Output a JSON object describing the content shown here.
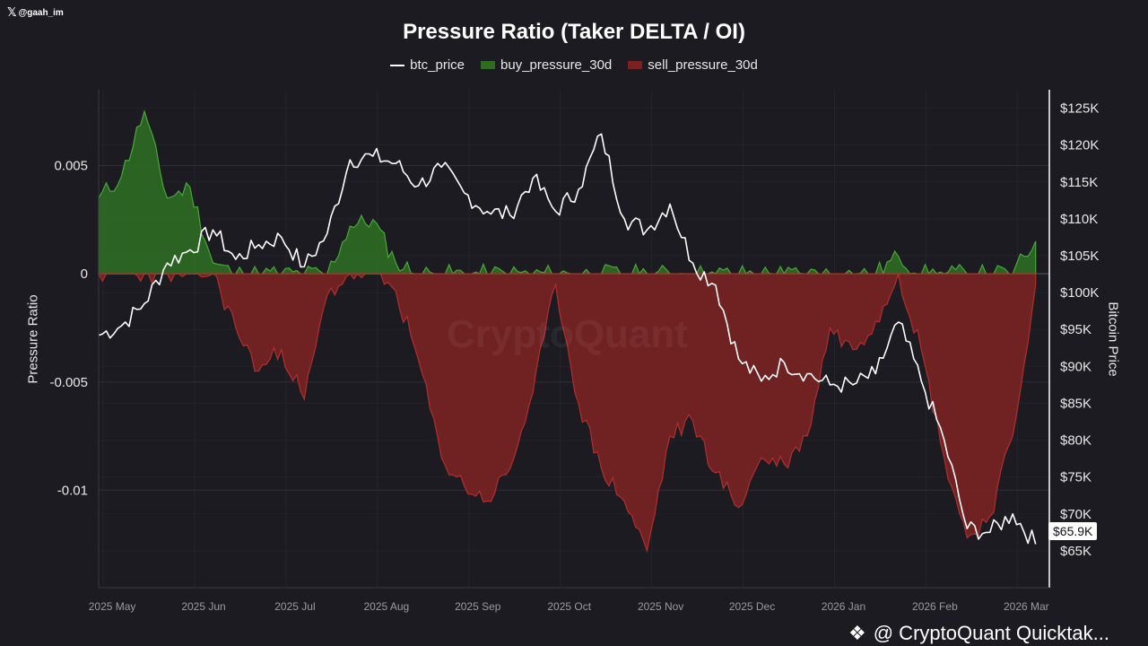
{
  "header": {
    "handle": "@gaah_im",
    "handle_icon": "x-logo-icon"
  },
  "footer": {
    "brand_text": "@ CryptoQuant Quicktak...",
    "brand_icon": "diamond-logo-icon"
  },
  "watermark": "CryptoQuant",
  "colors": {
    "background": "#1b1b21",
    "btc_line": "#ffffff",
    "buy_fill": "#2e6b22",
    "buy_line": "#49a83a",
    "sell_fill": "#7a2222",
    "sell_line": "#b03030",
    "grid": "#2e2e36"
  },
  "chart_data": {
    "type": "area",
    "title": "Pressure Ratio (Taker DELTA / OI)",
    "xlabel": "",
    "ylabel_left": "Pressure Ratio",
    "ylabel_right": "Bitcoin Price",
    "legend_position": "top-center",
    "grid": true,
    "x_ticks": [
      "2025 May",
      "2025 Jun",
      "2025 Jul",
      "2025 Aug",
      "2025 Sep",
      "2025 Oct",
      "2025 Nov",
      "2025 Dec",
      "2026 Jan",
      "2026 Feb",
      "2026 Mar"
    ],
    "ylim_left": [
      -0.0145,
      0.0085
    ],
    "yticks_left": [
      0.005,
      0,
      -0.005,
      -0.01
    ],
    "ytick_labels_left": [
      "0.005",
      "0",
      "-0.005",
      "-0.01"
    ],
    "ylim_right": [
      60000,
      127500
    ],
    "yticks_right": [
      125000,
      120000,
      115000,
      110000,
      105000,
      100000,
      95000,
      90000,
      85000,
      80000,
      75000,
      70000,
      65000
    ],
    "ytick_labels_right": [
      "$125K",
      "$120K",
      "$115K",
      "$110K",
      "$105K",
      "$100K",
      "$95K",
      "$90K",
      "$85K",
      "$80K",
      "$75K",
      "$70K",
      "$65K"
    ],
    "last_price_label": "$65.9K",
    "x_months": [
      0,
      0.25,
      0.5,
      0.75,
      1.0,
      1.25,
      1.5,
      1.75,
      2.0,
      2.25,
      2.5,
      2.75,
      3.0,
      3.25,
      3.5,
      3.75,
      4.0,
      4.25,
      4.5,
      4.75,
      5.0,
      5.25,
      5.5,
      5.75,
      6.0,
      6.25,
      6.5,
      6.75,
      7.0,
      7.25,
      7.5,
      7.75,
      8.0,
      8.25,
      8.5,
      8.75,
      9.0,
      9.25,
      9.5,
      9.75,
      10.0,
      10.25
    ],
    "series": [
      {
        "name": "btc_price",
        "axis": "right",
        "values": [
          94200,
          95500,
          98500,
          104000,
          105800,
          108500,
          104500,
          106500,
          107500,
          103500,
          108000,
          118000,
          118500,
          117500,
          114500,
          117000,
          113500,
          111000,
          110500,
          115500,
          111000,
          114000,
          121500,
          110000,
          108500,
          112000,
          104000,
          101000,
          91000,
          88000,
          90500,
          89000,
          87500,
          87500,
          89000,
          96000,
          88000,
          80000,
          68000,
          67500,
          70000,
          65900
        ]
      },
      {
        "name": "buy_pressure_30d",
        "axis": "left",
        "values": [
          0.0035,
          0.0045,
          0.0075,
          0.0035,
          0.004,
          0.0005,
          0,
          0,
          0,
          0,
          0,
          0.0022,
          0.0025,
          0.0005,
          0,
          0,
          0,
          0,
          0,
          0,
          0,
          0,
          0,
          0,
          0,
          0,
          0,
          0,
          0,
          0,
          0,
          0,
          0,
          0,
          0,
          0.0008,
          0,
          0,
          0,
          0,
          0,
          0.0015
        ]
      },
      {
        "name": "sell_pressure_30d",
        "axis": "left",
        "values": [
          0,
          0,
          0,
          0,
          0,
          0,
          -0.0025,
          -0.0045,
          -0.0035,
          -0.0058,
          -0.001,
          0,
          0,
          -0.0008,
          -0.004,
          -0.0085,
          -0.0098,
          -0.0105,
          -0.009,
          -0.0055,
          -0.0005,
          -0.006,
          -0.009,
          -0.0105,
          -0.0128,
          -0.0075,
          -0.0068,
          -0.0092,
          -0.0108,
          -0.0085,
          -0.0088,
          -0.0075,
          -0.0025,
          -0.0035,
          -0.0022,
          0,
          -0.0035,
          -0.0085,
          -0.0122,
          -0.0112,
          -0.0075,
          -0.0005
        ]
      }
    ]
  }
}
